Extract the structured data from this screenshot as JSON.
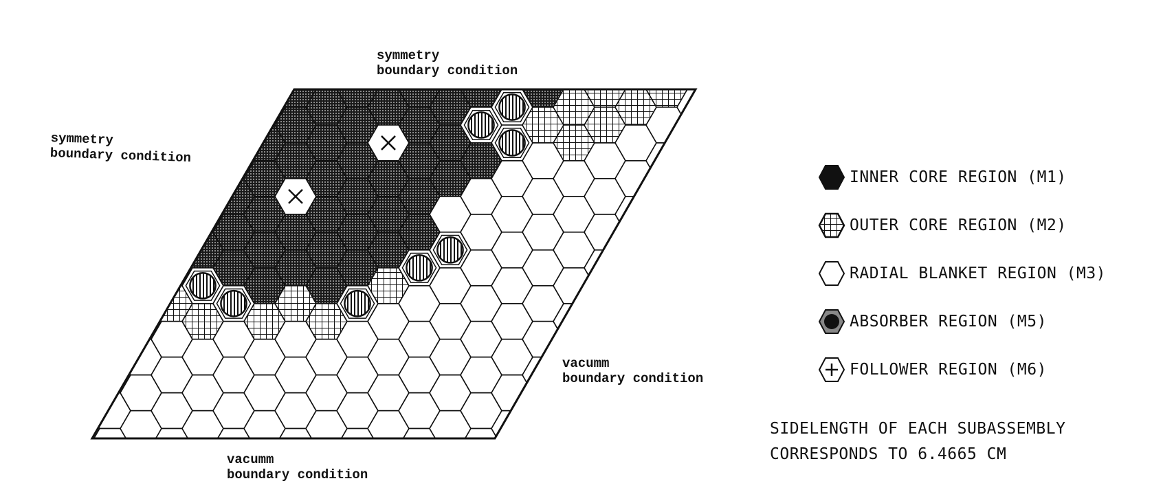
{
  "boundary_labels": {
    "top": {
      "line1": "symmetry",
      "line2": "boundary condition"
    },
    "left": {
      "line1": "symmetry",
      "line2": "boundary condition"
    },
    "right": {
      "line1": "vacumm",
      "line2": "boundary condition"
    },
    "bottom": {
      "line1": "vacumm",
      "line2": "boundary condition"
    }
  },
  "legend": [
    {
      "id": "inner",
      "icon": "filled-hexagon-icon",
      "label": "INNER CORE REGION (M1)"
    },
    {
      "id": "outer",
      "icon": "crosshatch-hexagon-icon",
      "label": "OUTER CORE REGION (M2)"
    },
    {
      "id": "blanket",
      "icon": "empty-hexagon-icon",
      "label": "RADIAL BLANKET REGION (M3)"
    },
    {
      "id": "absorber",
      "icon": "ringed-hexagon-icon",
      "label": "ABSORBER REGION (M5)"
    },
    {
      "id": "follower",
      "icon": "plus-hexagon-icon",
      "label": "FOLLOWER REGION (M6)"
    }
  ],
  "note": {
    "line1": "SIDELENGTH OF EACH SUBASSEMBLY",
    "line2": "CORRESPONDS TO 6.4665 CM"
  },
  "colors": {
    "ink": "#111111",
    "paper": "#ffffff",
    "inner_fill": "#3a3a3a"
  }
}
